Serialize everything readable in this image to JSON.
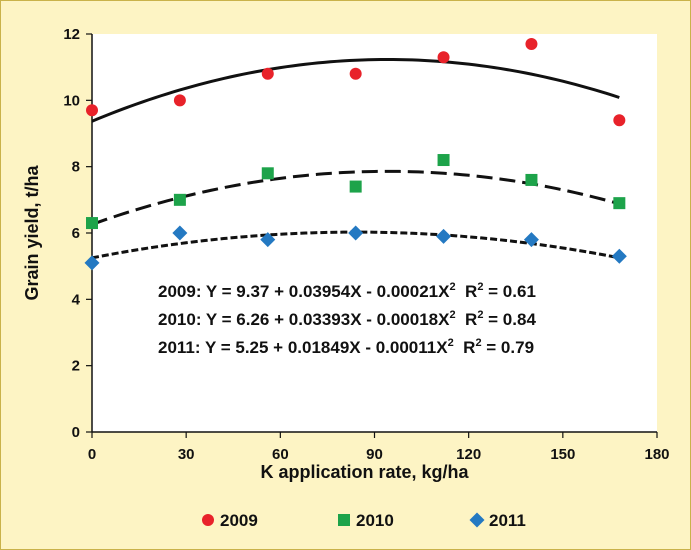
{
  "chart_data": {
    "type": "scatter",
    "xlabel": "K application rate, kg/ha",
    "ylabel": "Grain yield, t/ha",
    "xlim": [
      0,
      180
    ],
    "ylim": [
      0,
      12
    ],
    "xticks": [
      0,
      30,
      60,
      90,
      120,
      150,
      180
    ],
    "yticks": [
      0,
      2,
      4,
      6,
      8,
      10,
      12
    ],
    "grid": false,
    "legend_position": "bottom",
    "x": [
      0,
      28,
      56,
      84,
      112,
      140,
      168
    ],
    "series": [
      {
        "name": "2009",
        "marker": "circle",
        "color": "#e8222a",
        "values": [
          9.7,
          10.0,
          10.8,
          10.8,
          11.3,
          11.7,
          9.4
        ],
        "fit": {
          "a": 9.37,
          "b": 0.03954,
          "c": -0.00021,
          "line": "solid"
        },
        "equation": {
          "prefix": "2009: Y = 9.37 + 0.03954X - 0.00021X",
          "exp": "2",
          "r2_label": "R",
          "r2_exp": "2",
          "r2_value": " = 0.61"
        }
      },
      {
        "name": "2010",
        "marker": "square",
        "color": "#1da34a",
        "values": [
          6.3,
          7.0,
          7.8,
          7.4,
          8.2,
          7.6,
          6.9
        ],
        "fit": {
          "a": 6.26,
          "b": 0.03393,
          "c": -0.00018,
          "line": "long-dash"
        },
        "equation": {
          "prefix": "2010: Y = 6.26 + 0.03393X - 0.00018X",
          "exp": "2",
          "r2_label": "R",
          "r2_exp": "2",
          "r2_value": " = 0.84"
        }
      },
      {
        "name": "2011",
        "marker": "diamond",
        "color": "#2479c2",
        "values": [
          5.1,
          6.0,
          5.8,
          6.0,
          5.9,
          5.8,
          5.3
        ],
        "fit": {
          "a": 5.25,
          "b": 0.01849,
          "c": -0.00011,
          "line": "short-dash"
        },
        "equation": {
          "prefix": "2011: Y = 5.25 + 0.01849X - 0.00011X",
          "exp": "2",
          "r2_label": "R",
          "r2_exp": "2",
          "r2_value": " = 0.79"
        }
      }
    ]
  },
  "colors": {
    "page_background": "#fdf4c4",
    "plot_background": "#ffffff",
    "frame_border": "#c9b24a",
    "axis": "#111111"
  }
}
